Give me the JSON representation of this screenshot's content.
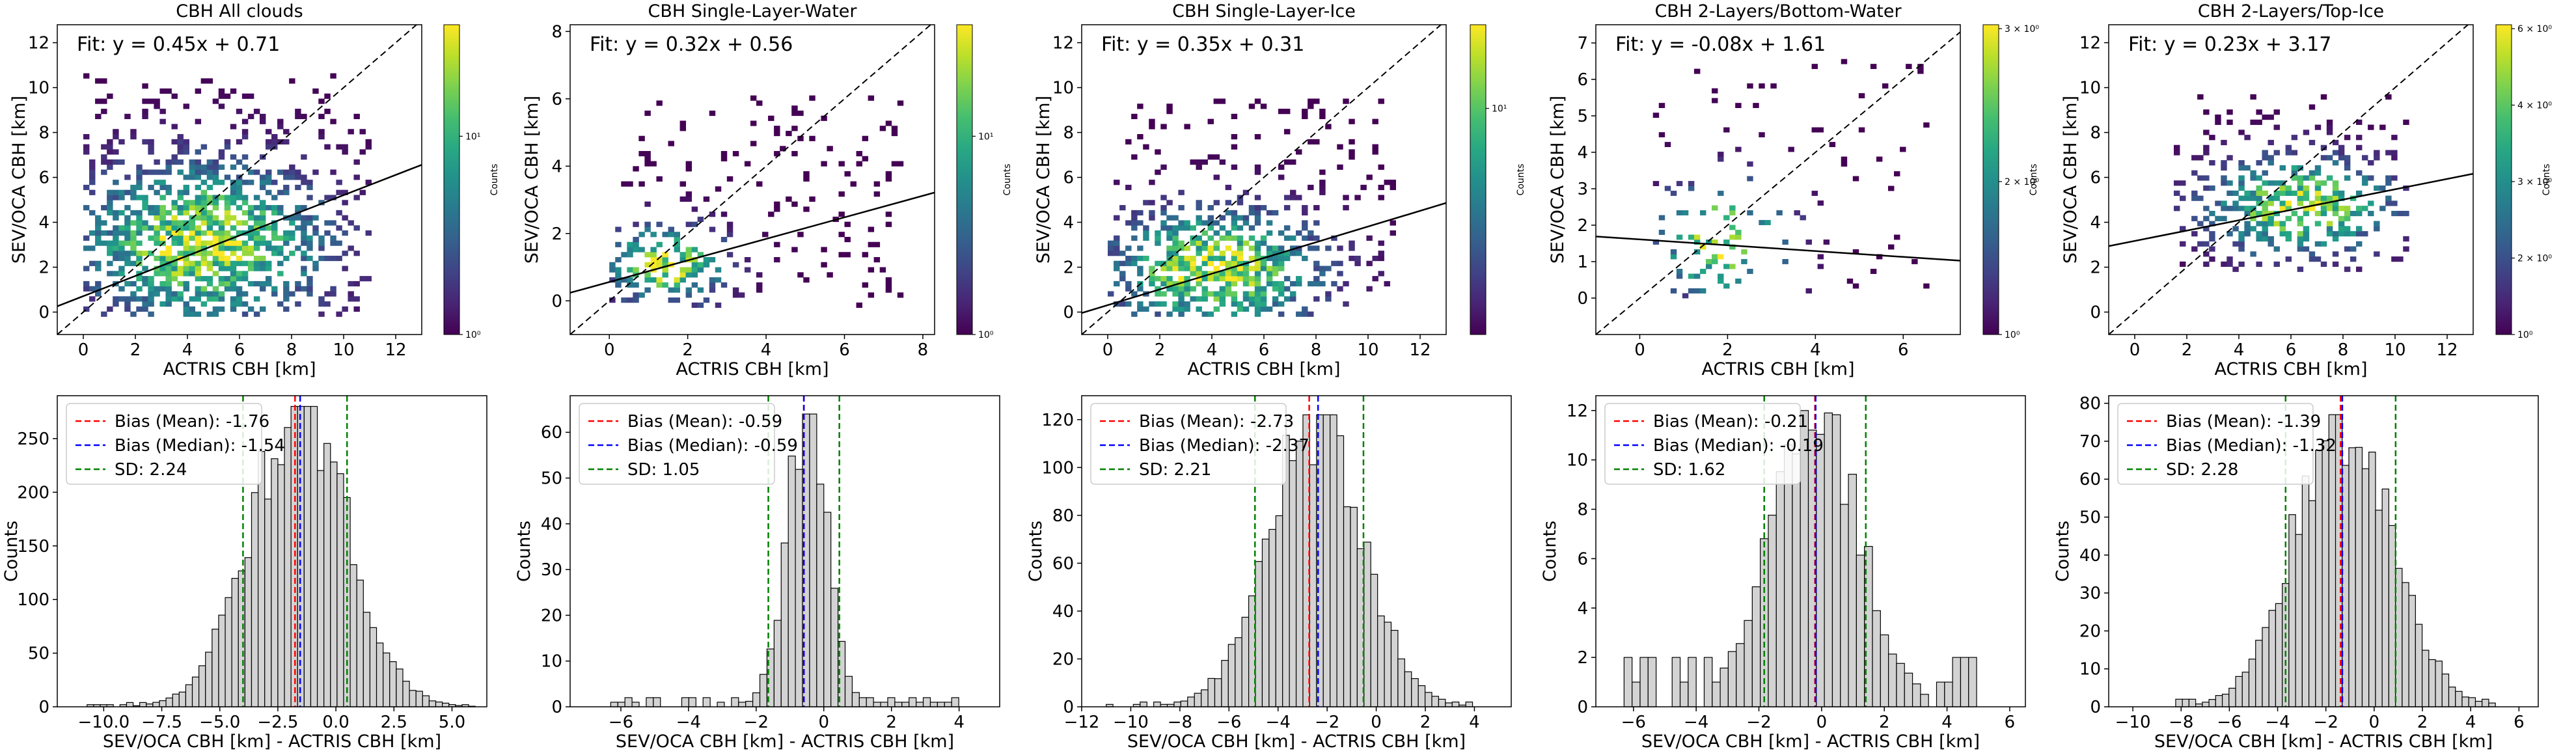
{
  "figure": {
    "background": "#ffffff",
    "colormap": "viridis"
  },
  "chart_data": [
    {
      "type": "heatmap",
      "title": "CBH All clouds",
      "xlabel": "ACTRIS CBH [km]",
      "ylabel": "SEV/OCA CBH [km]",
      "xlim": [
        -1,
        13
      ],
      "ylim": [
        -1,
        12.8
      ],
      "xticks": [
        0,
        2,
        4,
        6,
        8,
        10,
        12
      ],
      "yticks": [
        0,
        2,
        4,
        6,
        8,
        10,
        12
      ],
      "fit_label": "Fit: y = 0.45x + 0.71",
      "fit": {
        "slope": 0.45,
        "intercept": 0.71
      },
      "one_to_one_line": true,
      "cloud": {
        "cx": 4.5,
        "cy": 3.0,
        "sx": 3.2,
        "sy": 2.4,
        "density": 0.75,
        "xr": [
          0,
          11
        ],
        "yr": [
          -0.2,
          10.5
        ]
      },
      "colorbar": {
        "label": "Counts",
        "scale": "log",
        "tick_labels": [
          "10⁰",
          "10¹"
        ]
      }
    },
    {
      "type": "heatmap",
      "title": "CBH Single-Layer-Water",
      "xlabel": "ACTRIS CBH [km]",
      "ylabel": "SEV/OCA CBH [km]",
      "xlim": [
        -1,
        8.3
      ],
      "ylim": [
        -1,
        8.2
      ],
      "xticks": [
        0,
        2,
        4,
        6,
        8
      ],
      "yticks": [
        0,
        2,
        4,
        6,
        8
      ],
      "fit_label": "Fit: y = 0.32x + 0.56",
      "fit": {
        "slope": 0.32,
        "intercept": 0.56
      },
      "one_to_one_line": true,
      "cloud": {
        "cx": 1.4,
        "cy": 1.0,
        "sx": 1.0,
        "sy": 0.8,
        "density": 0.55,
        "xr": [
          0,
          7.5
        ],
        "yr": [
          -0.2,
          6.0
        ]
      },
      "colorbar": {
        "label": "Counts",
        "scale": "log",
        "tick_labels": [
          "10⁰",
          "10¹"
        ]
      }
    },
    {
      "type": "heatmap",
      "title": "CBH Single-Layer-Ice",
      "xlabel": "ACTRIS CBH [km]",
      "ylabel": "SEV/OCA CBH [km]",
      "xlim": [
        -1,
        13
      ],
      "ylim": [
        -1,
        12.8
      ],
      "xticks": [
        0,
        2,
        4,
        6,
        8,
        10,
        12
      ],
      "yticks": [
        0,
        2,
        4,
        6,
        8,
        10,
        12
      ],
      "fit_label": "Fit: y = 0.35x + 0.31",
      "fit": {
        "slope": 0.35,
        "intercept": 0.31
      },
      "one_to_one_line": true,
      "cloud": {
        "cx": 4.0,
        "cy": 1.8,
        "sx": 2.8,
        "sy": 1.8,
        "density": 0.7,
        "xr": [
          0,
          11
        ],
        "yr": [
          -0.2,
          9.5
        ]
      },
      "colorbar": {
        "label": "Counts",
        "scale": "log",
        "tick_labels": [
          "10¹"
        ]
      }
    },
    {
      "type": "heatmap",
      "title": "CBH 2-Layers/Bottom-Water",
      "xlabel": "ACTRIS CBH [km]",
      "ylabel": "SEV/OCA CBH [km]",
      "xlim": [
        -1,
        7.3
      ],
      "ylim": [
        -1,
        7.5
      ],
      "xticks": [
        0,
        2,
        4,
        6
      ],
      "yticks": [
        0,
        1,
        2,
        3,
        4,
        5,
        6,
        7
      ],
      "fit_label": "Fit: y = -0.08x + 1.61",
      "fit": {
        "slope": -0.08,
        "intercept": 1.61
      },
      "one_to_one_line": true,
      "cloud": {
        "cx": 1.8,
        "cy": 1.5,
        "sx": 1.0,
        "sy": 1.1,
        "density": 0.25,
        "xr": [
          0.3,
          6.5
        ],
        "yr": [
          0,
          6.5
        ]
      },
      "colorbar": {
        "label": "Counts",
        "scale": "log",
        "tick_labels": [
          "3 × 10⁰",
          "2 × 10⁰",
          "10⁰"
        ]
      }
    },
    {
      "type": "heatmap",
      "title": "CBH 2-Layers/Top-Ice",
      "xlabel": "ACTRIS CBH [km]",
      "ylabel": "SEV/OCA CBH [km]",
      "xlim": [
        -1,
        13
      ],
      "ylim": [
        -1,
        12.8
      ],
      "xticks": [
        0,
        2,
        4,
        6,
        8,
        10,
        12
      ],
      "yticks": [
        0,
        2,
        4,
        6,
        8,
        10,
        12
      ],
      "fit_label": "Fit: y = 0.23x + 3.17",
      "fit": {
        "slope": 0.23,
        "intercept": 3.17
      },
      "one_to_one_line": true,
      "cloud": {
        "cx": 6.2,
        "cy": 4.6,
        "sx": 2.4,
        "sy": 1.5,
        "density": 0.6,
        "xr": [
          1.5,
          10.5
        ],
        "yr": [
          1.8,
          9.5
        ]
      },
      "colorbar": {
        "label": "Counts",
        "scale": "log",
        "tick_labels": [
          "6 × 10⁰",
          "4 × 10⁰",
          "3 × 10⁰",
          "2 × 10⁰",
          "10⁰"
        ]
      }
    },
    {
      "type": "bar",
      "subtype": "histogram",
      "xlabel": "SEV/OCA CBH [km] - ACTRIS CBH [km]",
      "ylabel": "Counts",
      "xlim": [
        -12,
        6.5
      ],
      "ylim": [
        0,
        290
      ],
      "xticks": [
        -10.0,
        -7.5,
        -5.0,
        -2.5,
        0.0,
        2.5,
        5.0
      ],
      "xtick_labels": [
        "−10.0",
        "−7.5",
        "−5.0",
        "−2.5",
        "0.0",
        "2.5",
        "5.0"
      ],
      "yticks": [
        0,
        50,
        100,
        150,
        200,
        250
      ],
      "hist": {
        "min": -11.0,
        "max": 6.0,
        "bins": 60,
        "mean": -1.6,
        "sd": 2.1,
        "peak": 280,
        "floor": 2
      },
      "lines": [
        {
          "label": "Bias (Mean): -1.76",
          "x": -1.76,
          "color": "#ff0000"
        },
        {
          "label": "Bias (Median): -1.54",
          "x": -1.54,
          "color": "#0000ff"
        },
        {
          "label": "SD: 2.24",
          "x": -4.0,
          "x2": 0.48,
          "color": "#008000"
        }
      ]
    },
    {
      "type": "bar",
      "subtype": "histogram",
      "xlabel": "SEV/OCA CBH [km] - ACTRIS CBH [km]",
      "ylabel": "Counts",
      "xlim": [
        -7.5,
        5.2
      ],
      "ylim": [
        0,
        68
      ],
      "xticks": [
        -6,
        -4,
        -2,
        0,
        2,
        4
      ],
      "xtick_labels": [
        "−6",
        "−4",
        "−2",
        "0",
        "2",
        "4"
      ],
      "yticks": [
        0,
        10,
        20,
        30,
        40,
        50,
        60
      ],
      "hist": {
        "min": -6.3,
        "max": 4.2,
        "bins": 50,
        "mean": -0.5,
        "sd": 0.6,
        "peak": 64,
        "floor": 1
      },
      "lines": [
        {
          "label": "Bias (Mean): -0.59",
          "x": -0.59,
          "color": "#ff0000"
        },
        {
          "label": "Bias (Median): -0.59",
          "x": -0.59,
          "color": "#0000ff"
        },
        {
          "label": "SD: 1.05",
          "x": -1.64,
          "x2": 0.46,
          "color": "#008000"
        }
      ]
    },
    {
      "type": "bar",
      "subtype": "histogram",
      "xlabel": "SEV/OCA CBH [km] - ACTRIS CBH [km]",
      "ylabel": "Counts",
      "xlim": [
        -12,
        5.5
      ],
      "ylim": [
        0,
        130
      ],
      "xticks": [
        -12,
        -10,
        -8,
        -6,
        -4,
        -2,
        0,
        2,
        4
      ],
      "xtick_labels": [
        "−12",
        "−10",
        "−8",
        "−6",
        "−4",
        "−2",
        "0",
        "2",
        "4"
      ],
      "yticks": [
        0,
        20,
        40,
        60,
        80,
        100,
        120
      ],
      "hist": {
        "min": -11.0,
        "max": 4.2,
        "bins": 55,
        "mean": -2.5,
        "sd": 1.9,
        "peak": 122,
        "floor": 1
      },
      "lines": [
        {
          "label": "Bias (Mean): -2.73",
          "x": -2.73,
          "color": "#ff0000"
        },
        {
          "label": "Bias (Median): -2.37",
          "x": -2.37,
          "color": "#0000ff"
        },
        {
          "label": "SD: 2.21",
          "x": -4.94,
          "x2": -0.52,
          "color": "#008000"
        }
      ]
    },
    {
      "type": "bar",
      "subtype": "histogram",
      "xlabel": "SEV/OCA CBH [km] - ACTRIS CBH [km]",
      "ylabel": "Counts",
      "xlim": [
        -7.2,
        6.5
      ],
      "ylim": [
        0,
        12.6
      ],
      "xticks": [
        -6,
        -4,
        -2,
        0,
        2,
        4,
        6
      ],
      "xtick_labels": [
        "−6",
        "−4",
        "−2",
        "0",
        "2",
        "4",
        "6"
      ],
      "yticks": [
        0,
        2,
        4,
        6,
        8,
        10,
        12
      ],
      "hist": {
        "min": -6.3,
        "max": 5.2,
        "bins": 45,
        "mean": -0.2,
        "sd": 1.4,
        "peak": 12,
        "floor": 1
      },
      "lines": [
        {
          "label": "Bias (Mean): -0.21",
          "x": -0.21,
          "color": "#ff0000"
        },
        {
          "label": "Bias (Median): -0.19",
          "x": -0.19,
          "color": "#0000ff"
        },
        {
          "label": "SD: 1.62",
          "x": -1.83,
          "x2": 1.41,
          "color": "#008000"
        }
      ]
    },
    {
      "type": "bar",
      "subtype": "histogram",
      "xlabel": "SEV/OCA CBH [km] - ACTRIS CBH [km]",
      "ylabel": "Counts",
      "xlim": [
        -11,
        6.8
      ],
      "ylim": [
        0,
        82
      ],
      "xticks": [
        -10,
        -8,
        -6,
        -4,
        -2,
        0,
        2,
        4,
        6
      ],
      "xtick_labels": [
        "−10",
        "−8",
        "−6",
        "−4",
        "−2",
        "0",
        "2",
        "4",
        "6"
      ],
      "yticks": [
        0,
        10,
        20,
        30,
        40,
        50,
        60,
        70,
        80
      ],
      "hist": {
        "min": -8.5,
        "max": 5.3,
        "bins": 50,
        "mean": -1.3,
        "sd": 2.0,
        "peak": 77,
        "floor": 1
      },
      "lines": [
        {
          "label": "Bias (Mean): -1.39",
          "x": -1.39,
          "color": "#ff0000"
        },
        {
          "label": "Bias (Median): -1.32",
          "x": -1.32,
          "color": "#0000ff"
        },
        {
          "label": "SD: 2.28",
          "x": -3.67,
          "x2": 0.89,
          "color": "#008000"
        }
      ]
    }
  ]
}
